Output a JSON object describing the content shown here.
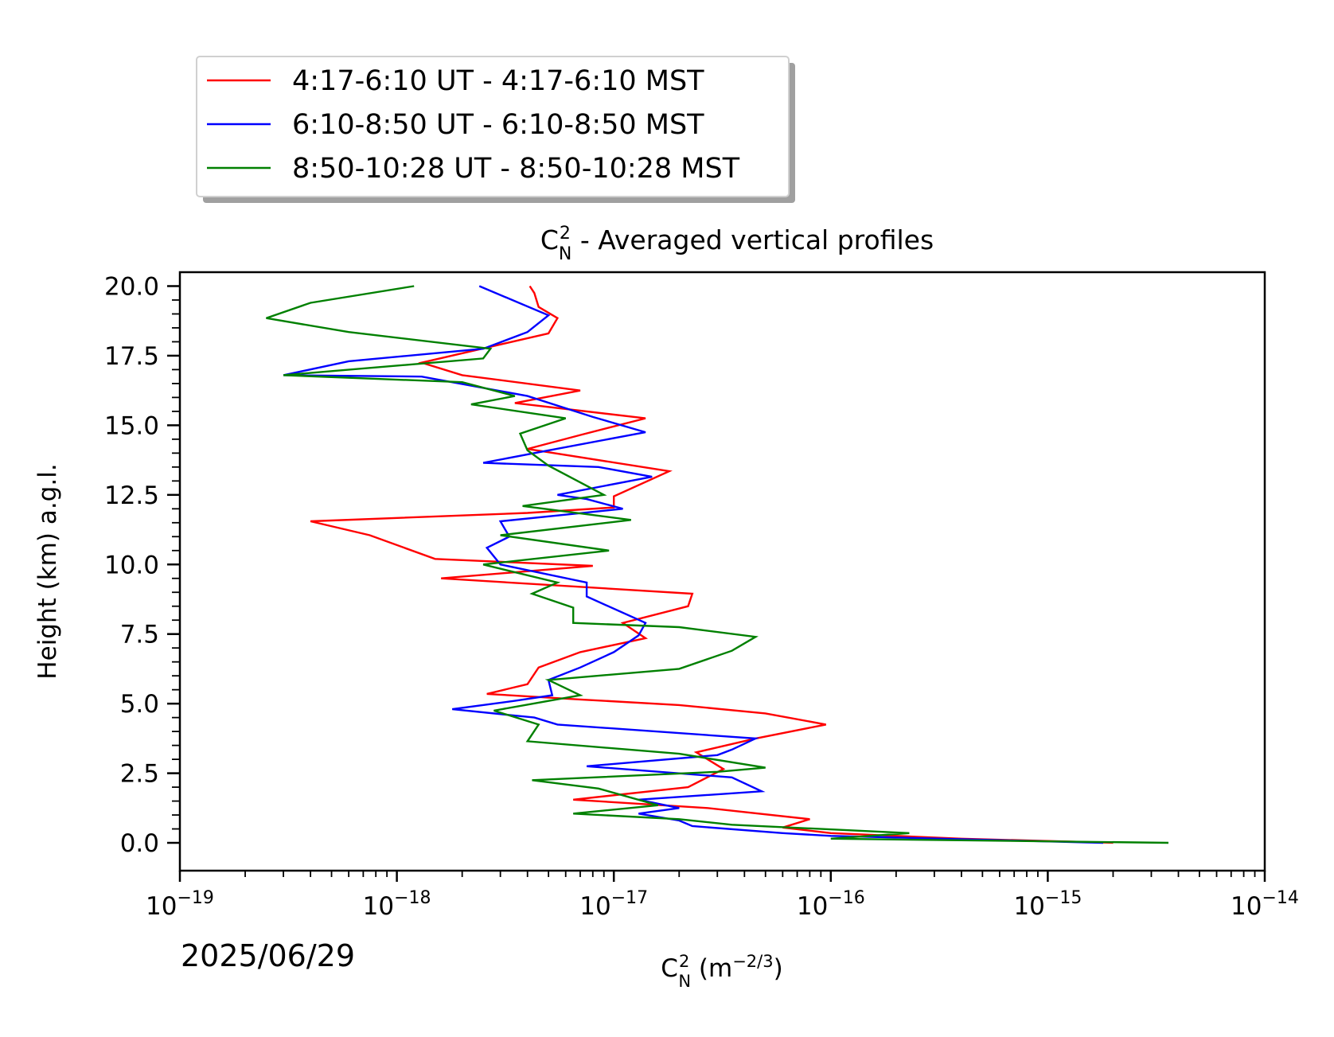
{
  "chart_data": {
    "type": "line",
    "title": "C",
    "title_sub": "N",
    "title_sup": "2",
    "title_rest": " - Averaged vertical profiles",
    "xlabel": "C",
    "xlabel_sub": "N",
    "xlabel_sup": "2",
    "xlabel_rest": " (m",
    "xlabel_unit_sup": "−2/3",
    "xlabel_end": ")",
    "ylabel": "Height (km) a.g.l.",
    "xscale": "log",
    "xlim": [
      1e-19,
      1e-14
    ],
    "ylim": [
      -1.0,
      20.5
    ],
    "xticks": [
      {
        "base": "10",
        "exp": "−19",
        "value": 1e-19
      },
      {
        "base": "10",
        "exp": "−18",
        "value": 1e-18
      },
      {
        "base": "10",
        "exp": "−17",
        "value": 1e-17
      },
      {
        "base": "10",
        "exp": "−16",
        "value": 1e-16
      },
      {
        "base": "10",
        "exp": "−15",
        "value": 1e-15
      },
      {
        "base": "10",
        "exp": "−14",
        "value": 1e-14
      }
    ],
    "yticks": [
      "0.0",
      "2.5",
      "5.0",
      "7.5",
      "10.0",
      "12.5",
      "15.0",
      "17.5",
      "20.0"
    ],
    "legend_position": "above-top-left",
    "date": "2025/06/29",
    "series": [
      {
        "name": "4:17-6:10 UT - 4:17-6:10 MST",
        "color": "#ff0000",
        "points": [
          [
            2e-15,
            0.0
          ],
          [
            4e-16,
            0.15
          ],
          [
            1e-16,
            0.35
          ],
          [
            6e-17,
            0.55
          ],
          [
            8e-17,
            0.85
          ],
          [
            2.7e-17,
            1.25
          ],
          [
            6.5e-18,
            1.55
          ],
          [
            2.2e-17,
            2.0
          ],
          [
            3.2e-17,
            2.65
          ],
          [
            2.4e-17,
            3.25
          ],
          [
            4.5e-17,
            3.75
          ],
          [
            9.5e-17,
            4.25
          ],
          [
            5e-17,
            4.65
          ],
          [
            2e-17,
            4.95
          ],
          [
            7e-18,
            5.15
          ],
          [
            2.6e-18,
            5.35
          ],
          [
            4e-18,
            5.7
          ],
          [
            4.5e-18,
            6.3
          ],
          [
            7e-18,
            6.85
          ],
          [
            1.4e-17,
            7.35
          ],
          [
            1.1e-17,
            7.9
          ],
          [
            2.2e-17,
            8.5
          ],
          [
            2.3e-17,
            8.95
          ],
          [
            1.6e-18,
            9.5
          ],
          [
            8e-18,
            9.95
          ],
          [
            1.5e-18,
            10.2
          ],
          [
            7.5e-19,
            11.05
          ],
          [
            4e-19,
            11.55
          ],
          [
            4e-18,
            11.85
          ],
          [
            1e-17,
            12.05
          ],
          [
            1e-17,
            12.45
          ],
          [
            1.8e-17,
            13.35
          ],
          [
            4e-18,
            14.15
          ],
          [
            7e-18,
            14.65
          ],
          [
            1.4e-17,
            15.25
          ],
          [
            3.5e-18,
            15.8
          ],
          [
            7e-18,
            16.25
          ],
          [
            2e-18,
            16.8
          ],
          [
            1.3e-18,
            17.25
          ],
          [
            5e-18,
            18.3
          ],
          [
            5.5e-18,
            18.85
          ],
          [
            4.5e-18,
            19.25
          ],
          [
            4.3e-18,
            19.75
          ],
          [
            4.1e-18,
            20.0
          ]
        ]
      },
      {
        "name": "6:10-8:50 UT - 6:10-8:50 MST",
        "color": "#0000ff",
        "points": [
          [
            1.8e-15,
            0.0
          ],
          [
            1e-16,
            0.25
          ],
          [
            6e-17,
            0.35
          ],
          [
            2.3e-17,
            0.6
          ],
          [
            2e-17,
            0.8
          ],
          [
            1.3e-17,
            1.05
          ],
          [
            2e-17,
            1.25
          ],
          [
            1.3e-17,
            1.55
          ],
          [
            4.8e-17,
            1.85
          ],
          [
            3.5e-17,
            2.35
          ],
          [
            7.5e-18,
            2.75
          ],
          [
            3e-17,
            3.15
          ],
          [
            3.5e-17,
            3.35
          ],
          [
            4.5e-17,
            3.75
          ],
          [
            5.5e-18,
            4.25
          ],
          [
            4.3e-18,
            4.5
          ],
          [
            1.8e-18,
            4.8
          ],
          [
            3.5e-18,
            5.1
          ],
          [
            5.2e-18,
            5.3
          ],
          [
            5e-18,
            5.85
          ],
          [
            7e-18,
            6.3
          ],
          [
            1e-17,
            6.85
          ],
          [
            1.3e-17,
            7.45
          ],
          [
            1.4e-17,
            7.9
          ],
          [
            7.5e-18,
            8.85
          ],
          [
            7.5e-18,
            9.35
          ],
          [
            3e-18,
            10.0
          ],
          [
            2.6e-18,
            10.6
          ],
          [
            3.3e-18,
            11.0
          ],
          [
            3e-18,
            11.55
          ],
          [
            1.1e-17,
            12.0
          ],
          [
            7.5e-18,
            12.35
          ],
          [
            5.5e-18,
            12.5
          ],
          [
            1.5e-17,
            13.15
          ],
          [
            8.5e-18,
            13.5
          ],
          [
            2.5e-18,
            13.65
          ],
          [
            5e-18,
            14.1
          ],
          [
            1.4e-17,
            14.75
          ],
          [
            8e-18,
            15.3
          ],
          [
            4e-18,
            16.05
          ],
          [
            1.3e-18,
            16.75
          ],
          [
            3e-19,
            16.8
          ],
          [
            6e-19,
            17.3
          ],
          [
            2.5e-18,
            17.75
          ],
          [
            4e-18,
            18.35
          ],
          [
            5e-18,
            18.95
          ],
          [
            2.4e-18,
            20.0
          ]
        ]
      },
      {
        "name": "8:50-10:28 UT - 8:50-10:28 MST",
        "color": "#008000",
        "points": [
          [
            3.6e-15,
            0.0
          ],
          [
            1e-16,
            0.15
          ],
          [
            2.3e-16,
            0.35
          ],
          [
            3.5e-17,
            0.65
          ],
          [
            2e-17,
            0.85
          ],
          [
            6.5e-18,
            1.05
          ],
          [
            1.6e-17,
            1.35
          ],
          [
            8.5e-18,
            1.95
          ],
          [
            4.2e-18,
            2.25
          ],
          [
            3e-17,
            2.55
          ],
          [
            5e-17,
            2.7
          ],
          [
            2e-17,
            3.2
          ],
          [
            4e-18,
            3.65
          ],
          [
            4.5e-18,
            4.25
          ],
          [
            2.8e-18,
            4.75
          ],
          [
            7e-18,
            5.3
          ],
          [
            5e-18,
            5.85
          ],
          [
            2e-17,
            6.25
          ],
          [
            3.5e-17,
            6.9
          ],
          [
            4.5e-17,
            7.4
          ],
          [
            2e-17,
            7.75
          ],
          [
            6.5e-18,
            7.9
          ],
          [
            6.5e-18,
            8.45
          ],
          [
            4.2e-18,
            8.95
          ],
          [
            5.5e-18,
            9.35
          ],
          [
            2.5e-18,
            10.0
          ],
          [
            9.5e-18,
            10.5
          ],
          [
            3e-18,
            11.05
          ],
          [
            1.2e-17,
            11.6
          ],
          [
            3.8e-18,
            12.1
          ],
          [
            9e-18,
            12.5
          ],
          [
            5e-18,
            13.55
          ],
          [
            4e-18,
            14.1
          ],
          [
            3.7e-18,
            14.7
          ],
          [
            6e-18,
            15.25
          ],
          [
            2.2e-18,
            15.75
          ],
          [
            3.5e-18,
            16.05
          ],
          [
            2e-18,
            16.55
          ],
          [
            3e-19,
            16.8
          ],
          [
            2.5e-18,
            17.4
          ],
          [
            2.7e-18,
            17.75
          ],
          [
            6e-19,
            18.35
          ],
          [
            2.5e-19,
            18.85
          ],
          [
            4e-19,
            19.4
          ],
          [
            1.2e-18,
            20.0
          ]
        ]
      }
    ]
  }
}
